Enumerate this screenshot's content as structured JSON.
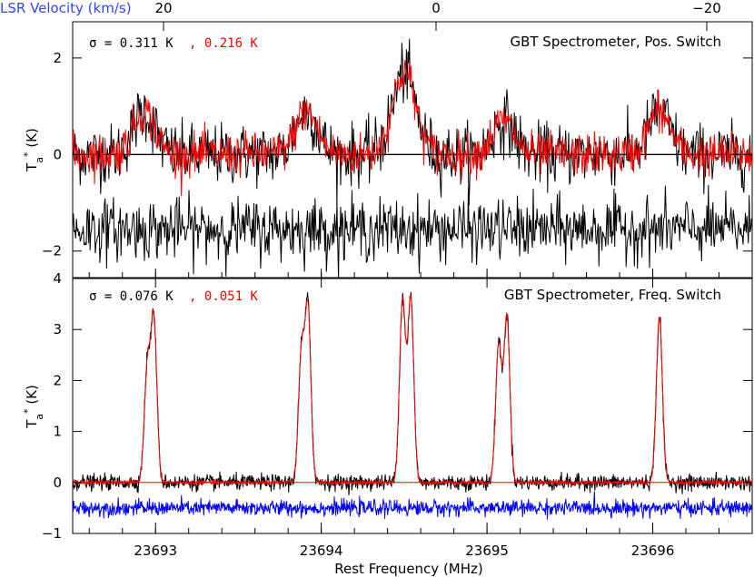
{
  "figure": {
    "top_axis_label": "LSR Velocity (km/s)",
    "top_axis_ticks": [
      20,
      0,
      -20
    ],
    "top_axis_tick_labels": [
      "20",
      "0",
      "−20"
    ],
    "xlabel": "Rest Frequency (MHz)",
    "x_ticks": [
      23693,
      23694,
      23695,
      23696
    ],
    "x_tick_labels": [
      "23693",
      "23694",
      "23695",
      "23696"
    ],
    "xlim": [
      23692.5,
      23696.6
    ],
    "colors": {
      "black": "#000000",
      "red": "#ff0000",
      "blue": "#0000ff",
      "blue_label": "#3344ff"
    }
  },
  "chart_data": [
    {
      "type": "line",
      "panel": "top",
      "title_right": "GBT Spectrometer, Pos. Switch",
      "sigma_label": "σ = 0.311 K",
      "sigma_label_red": ", 0.216 K",
      "ylabel": "T_a* (K)",
      "ylim": [
        -2.55,
        2.75
      ],
      "y_ticks": [
        -2,
        0,
        2
      ],
      "y_tick_labels": [
        "−2",
        "0",
        "2"
      ],
      "zero_line": true,
      "noise_sigma": {
        "black": 0.311,
        "red": 0.216
      },
      "line_centers_mhz": [
        23692.93,
        23693.91,
        23694.5,
        23695.1,
        23696.04
      ],
      "line_peaks_k": [
        0.9,
        0.9,
        1.7,
        0.7,
        0.9
      ],
      "residual_offset_k": -1.55,
      "series": [
        {
          "color": "black",
          "role": "spectrum"
        },
        {
          "color": "red",
          "role": "spectrum"
        },
        {
          "color": "black",
          "role": "residual"
        }
      ]
    },
    {
      "type": "line",
      "panel": "bottom",
      "title_right": "GBT Spectrometer, Freq. Switch",
      "sigma_label": "σ = 0.076 K",
      "sigma_label_red": ", 0.051 K",
      "ylabel": "T_a* (K)",
      "ylim": [
        -1.0,
        4.0
      ],
      "y_ticks": [
        -1,
        0,
        1,
        2,
        3,
        4
      ],
      "y_tick_labels": [
        "−1",
        "0",
        "1",
        "2",
        "3",
        "4"
      ],
      "zero_line": true,
      "noise_sigma": {
        "black": 0.076,
        "red": 0.051
      },
      "peaks": [
        {
          "x": 23692.95,
          "y": 2.2
        },
        {
          "x": 23692.99,
          "y": 3.15
        },
        {
          "x": 23693.88,
          "y": 2.45
        },
        {
          "x": 23693.92,
          "y": 3.35
        },
        {
          "x": 23694.49,
          "y": 3.55
        },
        {
          "x": 23694.54,
          "y": 3.6
        },
        {
          "x": 23695.07,
          "y": 2.7
        },
        {
          "x": 23695.12,
          "y": 3.25
        },
        {
          "x": 23696.04,
          "y": 3.25
        }
      ],
      "residual_offset_k": -0.5,
      "series": [
        {
          "color": "black",
          "role": "spectrum"
        },
        {
          "color": "red",
          "role": "model"
        },
        {
          "color": "blue",
          "role": "residual"
        }
      ]
    }
  ]
}
